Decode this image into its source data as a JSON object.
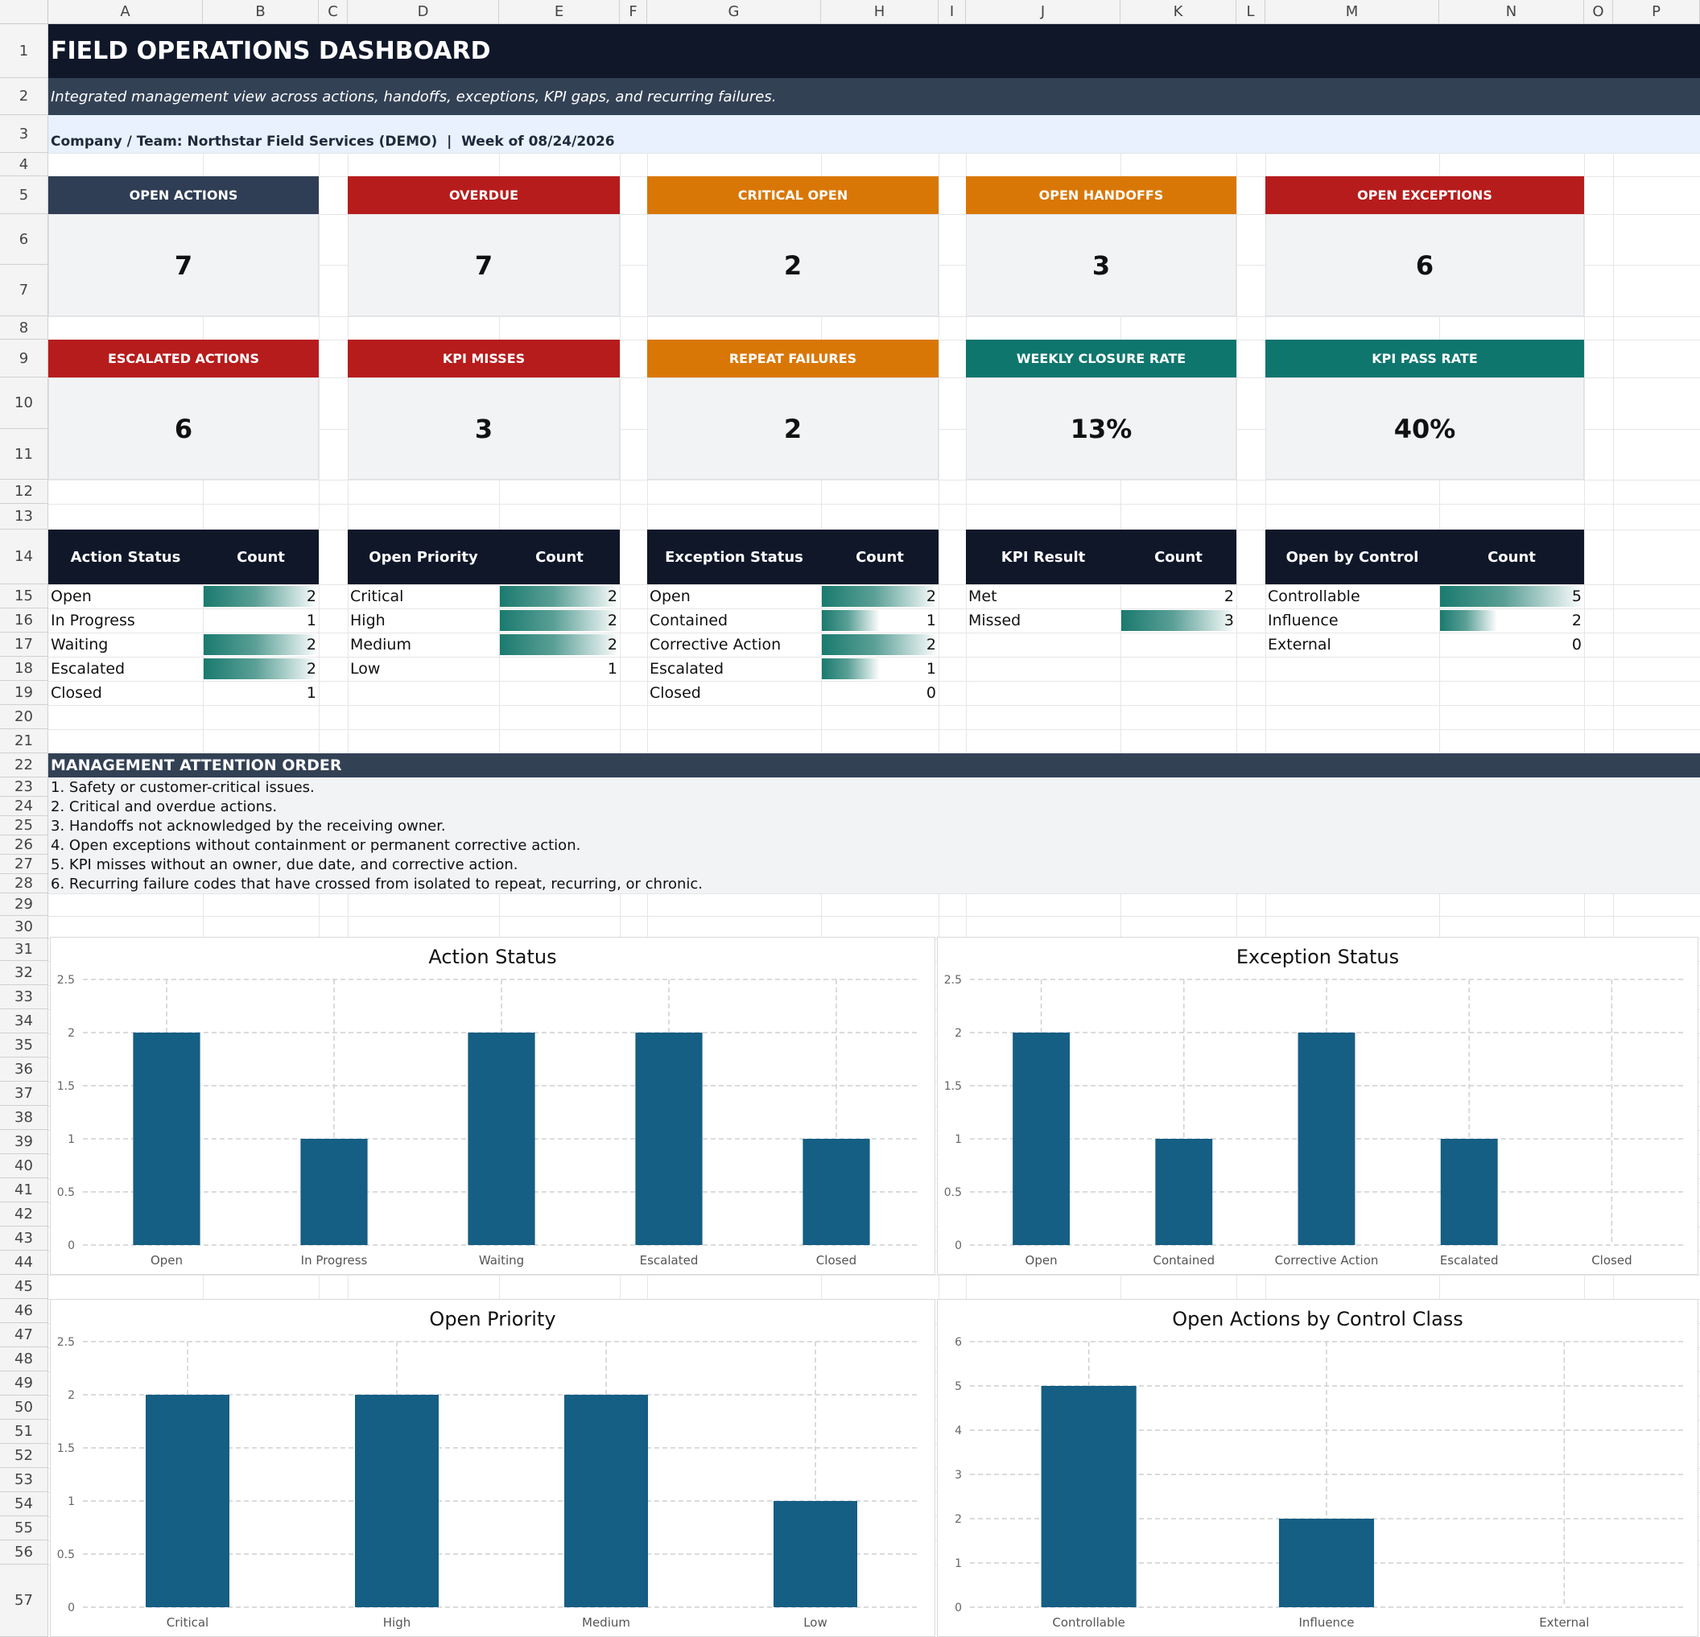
{
  "sheet": {
    "columns": [
      "A",
      "B",
      "C",
      "D",
      "E",
      "F",
      "G",
      "H",
      "I",
      "J",
      "K",
      "L",
      "M",
      "N",
      "O",
      "P"
    ],
    "rows": [
      "1",
      "2",
      "3",
      "4",
      "5",
      "6",
      "7",
      "8",
      "9",
      "10",
      "11",
      "12",
      "13",
      "14",
      "15",
      "16",
      "17",
      "18",
      "19",
      "20",
      "21",
      "22",
      "23",
      "24",
      "25",
      "26",
      "27",
      "28",
      "29",
      "30",
      "31",
      "32",
      "33",
      "34",
      "35",
      "36",
      "37",
      "38",
      "39",
      "40",
      "41",
      "42",
      "43",
      "44",
      "45",
      "46",
      "47",
      "48",
      "49",
      "50",
      "51",
      "52",
      "53",
      "54",
      "55",
      "56",
      "57"
    ]
  },
  "header": {
    "title": "FIELD OPERATIONS DASHBOARD",
    "subtitle": "Integrated management view across actions, handoffs, exceptions, KPI gaps, and recurring failures.",
    "company_line": "Company / Team: Northstar Field Services (DEMO)  |  Week of 08/24/2026"
  },
  "kpis_row1": [
    {
      "label": "OPEN ACTIONS",
      "value": "7",
      "color": "#2f3e55"
    },
    {
      "label": "OVERDUE",
      "value": "7",
      "color": "#b71c1c"
    },
    {
      "label": "CRITICAL OPEN",
      "value": "2",
      "color": "#d97706"
    },
    {
      "label": "OPEN HANDOFFS",
      "value": "3",
      "color": "#d97706"
    },
    {
      "label": "OPEN EXCEPTIONS",
      "value": "6",
      "color": "#b71c1c"
    }
  ],
  "kpis_row2": [
    {
      "label": "ESCALATED ACTIONS",
      "value": "6",
      "color": "#b71c1c"
    },
    {
      "label": "KPI MISSES",
      "value": "3",
      "color": "#b71c1c"
    },
    {
      "label": "REPEAT FAILURES",
      "value": "2",
      "color": "#d97706"
    },
    {
      "label": "WEEKLY CLOSURE RATE",
      "value": "13%",
      "color": "#0f766e"
    },
    {
      "label": "KPI PASS RATE",
      "value": "40%",
      "color": "#0f766e"
    }
  ],
  "tables": [
    {
      "h1": "Action Status",
      "h2": "Count",
      "max": 2,
      "rows": [
        {
          "label": "Open",
          "count": 2
        },
        {
          "label": "In Progress",
          "count": 1
        },
        {
          "label": "Waiting",
          "count": 2
        },
        {
          "label": "Escalated",
          "count": 2
        },
        {
          "label": "Closed",
          "count": 1
        }
      ]
    },
    {
      "h1": "Open Priority",
      "h2": "Count",
      "max": 2,
      "rows": [
        {
          "label": "Critical",
          "count": 2
        },
        {
          "label": "High",
          "count": 2
        },
        {
          "label": "Medium",
          "count": 2
        },
        {
          "label": "Low",
          "count": 1
        }
      ]
    },
    {
      "h1": "Exception Status",
      "h2": "Count",
      "max": 2,
      "rows": [
        {
          "label": "Open",
          "count": 2
        },
        {
          "label": "Contained",
          "count": 1
        },
        {
          "label": "Corrective Action",
          "count": 2
        },
        {
          "label": "Escalated",
          "count": 1
        },
        {
          "label": "Closed",
          "count": 0
        }
      ]
    },
    {
      "h1": "KPI Result",
      "h2": "Count",
      "max": 3,
      "rows": [
        {
          "label": "Met",
          "count": 2
        },
        {
          "label": "Missed",
          "count": 3
        }
      ]
    },
    {
      "h1": "Open by Control",
      "h2": "Count",
      "max": 5,
      "rows": [
        {
          "label": "Controllable",
          "count": 5
        },
        {
          "label": "Influence",
          "count": 2
        },
        {
          "label": "External",
          "count": 0
        }
      ]
    }
  ],
  "attention": {
    "title": "MANAGEMENT ATTENTION ORDER",
    "items": [
      "1. Safety or customer-critical issues.",
      "2. Critical and overdue actions.",
      "3. Handoffs not acknowledged by the receiving owner.",
      "4. Open exceptions without containment or permanent corrective action.",
      "5. KPI misses without an owner, due date, and corrective action.",
      "6. Recurring failure codes that have crossed from isolated to repeat, recurring, or chronic."
    ]
  },
  "colors": {
    "bar": "#155e84",
    "dark": "#0f1729",
    "slate": "#334155"
  },
  "chart_data": [
    {
      "type": "bar",
      "title": "Action Status",
      "categories": [
        "Open",
        "In Progress",
        "Waiting",
        "Escalated",
        "Closed"
      ],
      "values": [
        2,
        1,
        2,
        2,
        1
      ],
      "ylim": [
        0,
        2.5
      ],
      "yticks": [
        "0",
        "0.5",
        "1",
        "1.5",
        "2",
        "2.5"
      ],
      "grid": true
    },
    {
      "type": "bar",
      "title": "Exception Status",
      "categories": [
        "Open",
        "Contained",
        "Corrective Action",
        "Escalated",
        "Closed"
      ],
      "values": [
        2,
        1,
        2,
        1,
        0
      ],
      "ylim": [
        0,
        2.5
      ],
      "yticks": [
        "0",
        "0.5",
        "1",
        "1.5",
        "2",
        "2.5"
      ],
      "grid": true
    },
    {
      "type": "bar",
      "title": "Open Priority",
      "categories": [
        "Critical",
        "High",
        "Medium",
        "Low"
      ],
      "values": [
        2,
        2,
        2,
        1
      ],
      "ylim": [
        0,
        2.5
      ],
      "yticks": [
        "0",
        "0.5",
        "1",
        "1.5",
        "2",
        "2.5"
      ],
      "grid": true
    },
    {
      "type": "bar",
      "title": "Open Actions by Control Class",
      "categories": [
        "Controllable",
        "Influence",
        "External"
      ],
      "values": [
        5,
        2,
        0
      ],
      "ylim": [
        0,
        6
      ],
      "yticks": [
        "0",
        "1",
        "2",
        "3",
        "4",
        "5",
        "6"
      ],
      "grid": true
    }
  ]
}
